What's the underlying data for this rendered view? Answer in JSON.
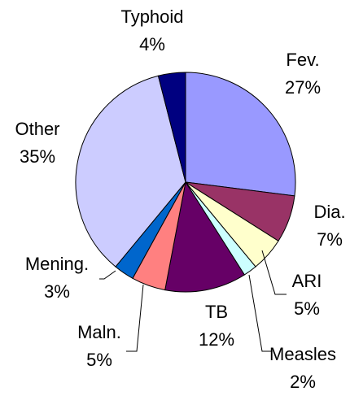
{
  "chart_data": {
    "type": "pie",
    "categories": [
      "Fev.",
      "Dia.",
      "ARI",
      "Measles",
      "TB",
      "Maln.",
      "Mening.",
      "Other",
      "Typhoid"
    ],
    "values": [
      27,
      7,
      5,
      2,
      12,
      5,
      3,
      35,
      4
    ],
    "value_labels": [
      "27%",
      "7%",
      "5%",
      "2%",
      "12%",
      "5%",
      "3%",
      "35%",
      "4%"
    ],
    "colors": [
      "#9999ff",
      "#993366",
      "#ffffcc",
      "#ccffff",
      "#660066",
      "#ff8080",
      "#0066cc",
      "#ccccff",
      "#000080"
    ]
  }
}
